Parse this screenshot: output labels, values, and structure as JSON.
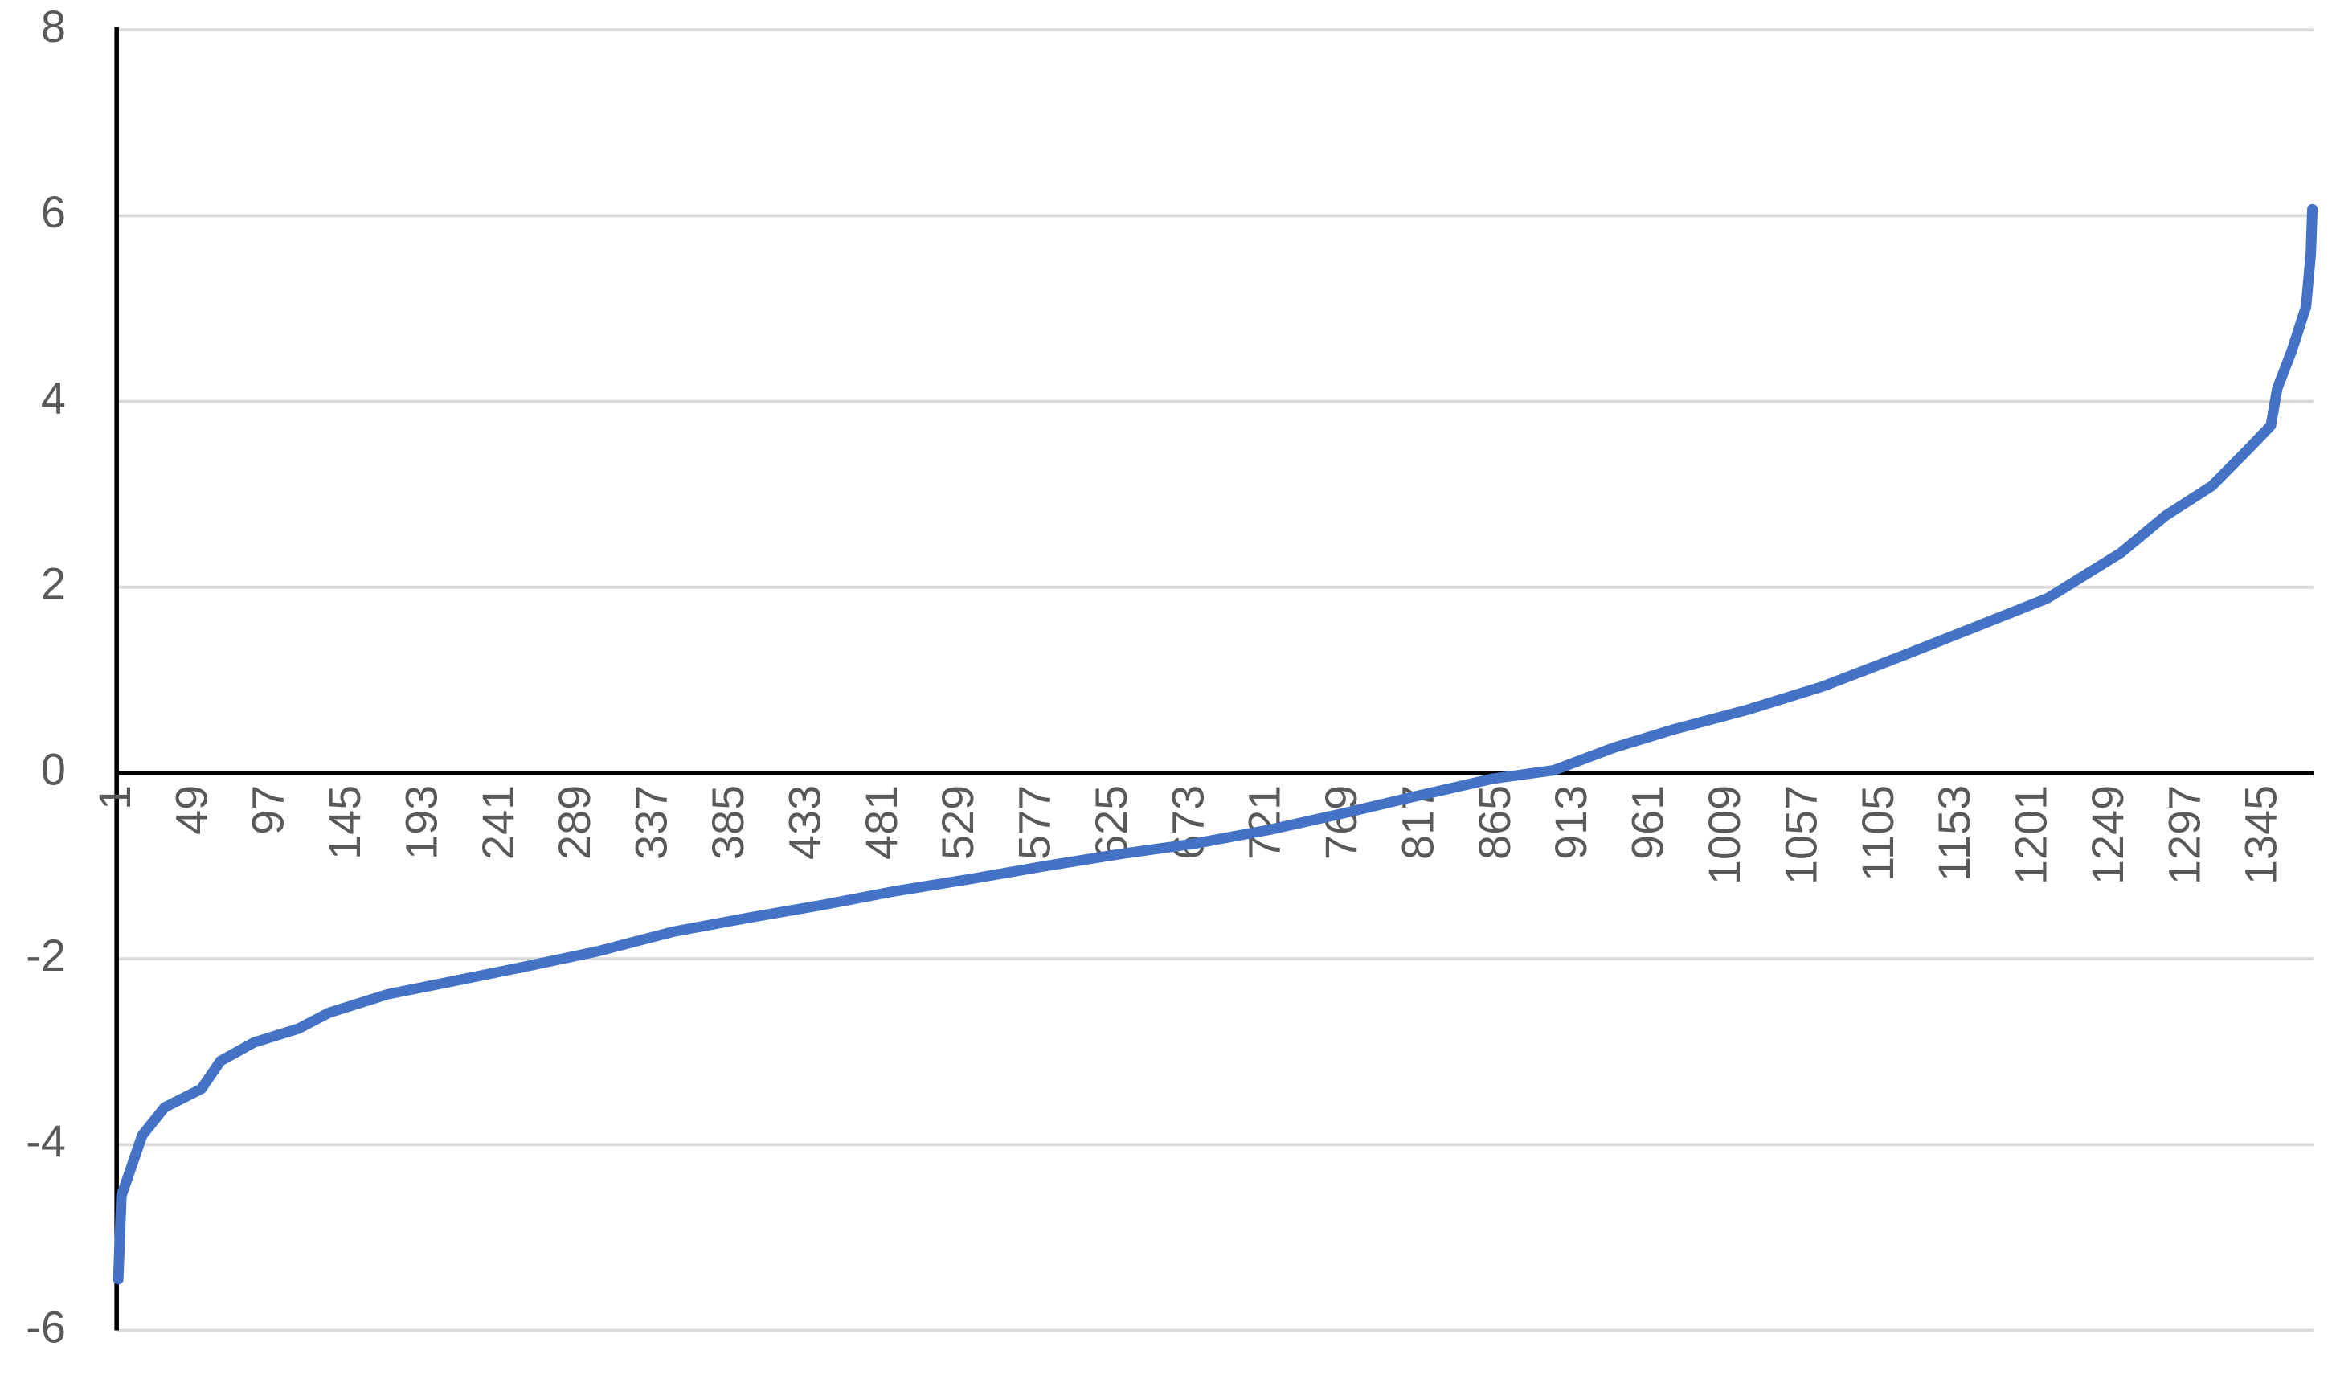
{
  "chart_data": {
    "type": "line",
    "color": "#4472c4",
    "grid": true,
    "x": [
      1,
      3,
      6,
      16,
      30,
      53,
      65,
      86,
      114,
      133,
      170,
      208,
      254,
      301,
      348,
      395,
      442,
      488,
      535,
      582,
      629,
      675,
      722,
      769,
      816,
      862,
      900,
      937,
      975,
      1021,
      1068,
      1115,
      1162,
      1209,
      1255,
      1283,
      1312,
      1335,
      1349,
      1353,
      1362,
      1371,
      1374,
      1375
    ],
    "values": [
      -5.45,
      -4.55,
      -4.4,
      -3.9,
      -3.6,
      -3.4,
      -3.1,
      -2.9,
      -2.75,
      -2.58,
      -2.38,
      -2.25,
      -2.09,
      -1.92,
      -1.71,
      -1.56,
      -1.42,
      -1.27,
      -1.14,
      -1.0,
      -0.87,
      -0.76,
      -0.61,
      -0.43,
      -0.24,
      -0.06,
      0.03,
      0.27,
      0.47,
      0.68,
      0.93,
      1.24,
      1.56,
      1.88,
      2.37,
      2.77,
      3.09,
      3.49,
      3.74,
      4.14,
      4.54,
      5.02,
      5.59,
      6.07
    ],
    "xlim": [
      0,
      1376
    ],
    "xticks": [
      1,
      49,
      97,
      145,
      193,
      241,
      289,
      337,
      385,
      433,
      481,
      529,
      577,
      625,
      673,
      721,
      769,
      817,
      865,
      913,
      961,
      1009,
      1057,
      1105,
      1153,
      1201,
      1249,
      1297,
      1345
    ],
    "ylim": [
      -6,
      8
    ],
    "yticks": [
      -6,
      -4,
      -2,
      0,
      2,
      4,
      6,
      8
    ]
  }
}
